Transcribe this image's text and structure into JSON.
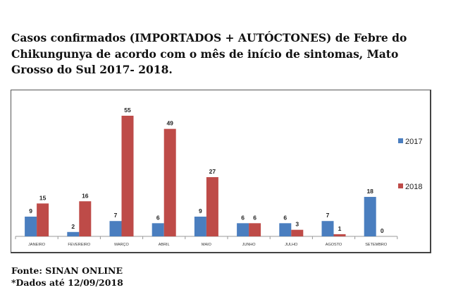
{
  "title_lines": [
    "Casos confirmados (IMPORTADOS + AUTÓCTONES) de Febre do",
    "Chikungunya de acordo com o mês de início de sintomas, Mato",
    "Grosso do Sul 2017- 2018."
  ],
  "footer": {
    "source": "Fonte: SINAN ONLINE",
    "note": "*Dados até 12/09/2018"
  },
  "chart_data": {
    "type": "bar",
    "title": "Casos confirmados (IMPORTADOS + AUTÓCTONES) de Febre do Chikungunya de acordo com o mês de início de sintomas, Mato Grosso do Sul 2017- 2018.",
    "categories": [
      "JANEIRO",
      "FEVEREIRO",
      "MARÇO",
      "ABRIL",
      "MAIO",
      "JUNHO",
      "JULHO",
      "AGOSTO",
      "SETEMBRO"
    ],
    "series": [
      {
        "name": "2017",
        "color": "#4a7ebf",
        "values": [
          9,
          2,
          7,
          6,
          9,
          6,
          6,
          7,
          18
        ]
      },
      {
        "name": "2018",
        "color": "#be4b48",
        "values": [
          15,
          16,
          55,
          49,
          27,
          6,
          3,
          1,
          0
        ]
      }
    ],
    "xlabel": "",
    "ylabel": "",
    "ylim": [
      0,
      60
    ],
    "grid": false,
    "legend": "right",
    "data_labels": true
  }
}
